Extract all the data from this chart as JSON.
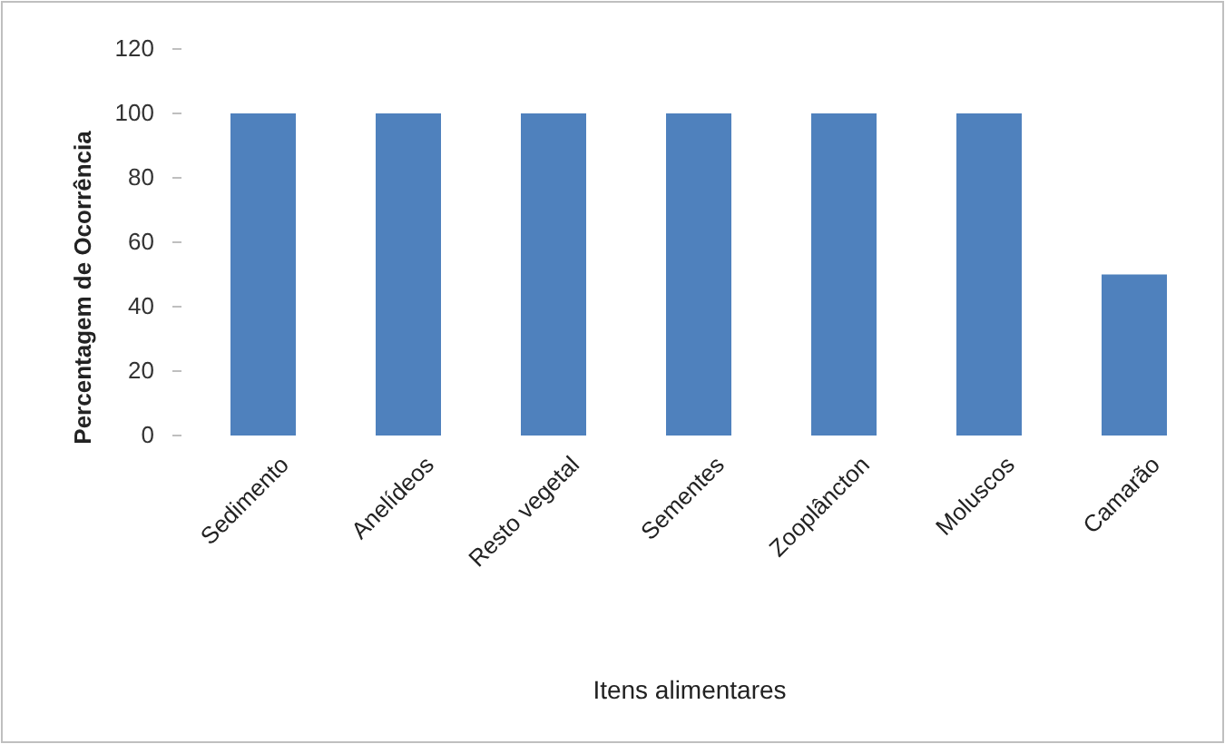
{
  "chart_data": {
    "type": "bar",
    "xlabel": "Itens alimentares",
    "ylabel": "Percentagem de Ocorrência",
    "categories": [
      "Sedimento",
      "Anelídeos",
      "Resto vegetal",
      "Sementes",
      "Zooplâncton",
      "Moluscos",
      "Camarão"
    ],
    "values": [
      100,
      100,
      100,
      100,
      100,
      100,
      50
    ],
    "color": "#4f81bd",
    "ylim": [
      0,
      120
    ],
    "yticks": [
      0,
      20,
      40,
      60,
      80,
      100,
      120
    ],
    "grid": false
  }
}
